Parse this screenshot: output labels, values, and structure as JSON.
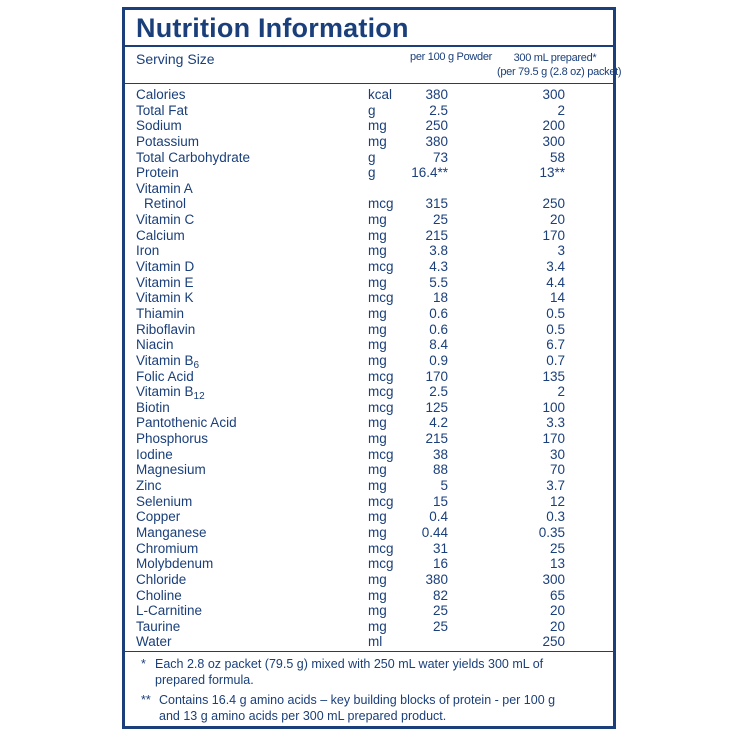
{
  "title": "Nutrition Information",
  "serving_label": "Serving Size",
  "col1_label": "per 100 g Powder",
  "col2_label_line1": "300 mL prepared*",
  "col2_label_line2": "(per 79.5 g (2.8 oz) packet)",
  "rows": [
    {
      "name": "Calories",
      "unit": "kcal",
      "v1": "380",
      "v2": "300"
    },
    {
      "name": "Total Fat",
      "unit": "g",
      "v1": "2.5",
      "v2": "2"
    },
    {
      "name": "Sodium",
      "unit": "mg",
      "v1": "250",
      "v2": "200"
    },
    {
      "name": "Potassium",
      "unit": "mg",
      "v1": "380",
      "v2": "300"
    },
    {
      "name": "Total Carbohydrate",
      "unit": "g",
      "v1": "73",
      "v2": "58"
    },
    {
      "name": "Protein",
      "unit": "g",
      "v1": "16.4**",
      "v2": "13**"
    },
    {
      "name": "Vitamin A",
      "unit": "",
      "v1": "",
      "v2": ""
    },
    {
      "name": "Retinol",
      "unit": "mcg",
      "v1": "315",
      "v2": "250"
    },
    {
      "name": "Vitamin C",
      "unit": "mg",
      "v1": "25",
      "v2": "20"
    },
    {
      "name": "Calcium",
      "unit": "mg",
      "v1": "215",
      "v2": "170"
    },
    {
      "name": "Iron",
      "unit": "mg",
      "v1": "3.8",
      "v2": "3"
    },
    {
      "name": "Vitamin D",
      "unit": "mcg",
      "v1": "4.3",
      "v2": "3.4"
    },
    {
      "name": "Vitamin E",
      "unit": "mg",
      "v1": "5.5",
      "v2": "4.4"
    },
    {
      "name": "Vitamin K",
      "unit": "mcg",
      "v1": "18",
      "v2": "14"
    },
    {
      "name": "Thiamin",
      "unit": "mg",
      "v1": "0.6",
      "v2": "0.5"
    },
    {
      "name": "Riboflavin",
      "unit": "mg",
      "v1": "0.6",
      "v2": "0.5"
    },
    {
      "name": "Niacin",
      "unit": "mg",
      "v1": "8.4",
      "v2": "6.7"
    },
    {
      "name": "Vitamin B",
      "sub": "6",
      "unit": "mg",
      "v1": "0.9",
      "v2": "0.7"
    },
    {
      "name": "Folic Acid",
      "unit": "mcg",
      "v1": "170",
      "v2": "135"
    },
    {
      "name": "Vitamin B",
      "sub": "12",
      "unit": "mcg",
      "v1": "2.5",
      "v2": "2"
    },
    {
      "name": "Biotin",
      "unit": "mcg",
      "v1": "125",
      "v2": "100"
    },
    {
      "name": "Pantothenic Acid",
      "unit": "mg",
      "v1": "4.2",
      "v2": "3.3"
    },
    {
      "name": "Phosphorus",
      "unit": "mg",
      "v1": "215",
      "v2": "170"
    },
    {
      "name": "Iodine",
      "unit": "mcg",
      "v1": "38",
      "v2": "30"
    },
    {
      "name": "Magnesium",
      "unit": "mg",
      "v1": "88",
      "v2": "70"
    },
    {
      "name": "Zinc",
      "unit": "mg",
      "v1": "5",
      "v2": "3.7"
    },
    {
      "name": "Selenium",
      "unit": "mcg",
      "v1": "15",
      "v2": "12"
    },
    {
      "name": "Copper",
      "unit": "mg",
      "v1": "0.4",
      "v2": "0.3"
    },
    {
      "name": "Manganese",
      "unit": "mg",
      "v1": "0.44",
      "v2": "0.35"
    },
    {
      "name": "Chromium",
      "unit": "mcg",
      "v1": "31",
      "v2": "25"
    },
    {
      "name": "Molybdenum",
      "unit": "mcg",
      "v1": "16",
      "v2": "13"
    },
    {
      "name": "Chloride",
      "unit": "mg",
      "v1": "380",
      "v2": "300"
    },
    {
      "name": "Choline",
      "unit": "mg",
      "v1": "82",
      "v2": "65"
    },
    {
      "name": "L-Carnitine",
      "unit": "mg",
      "v1": "25",
      "v2": "20"
    },
    {
      "name": "Taurine",
      "unit": "mg",
      "v1": "25",
      "v2": "20"
    },
    {
      "name": "Water",
      "unit": "ml",
      "v1": "",
      "v2": "250"
    }
  ],
  "footnotes": [
    {
      "marker": "*",
      "line1": "Each 2.8 oz packet (79.5 g) mixed with 250 mL water yields 300 mL of",
      "line2": "prepared formula."
    },
    {
      "marker": "**",
      "line1": "Contains 16.4 g amino acids – key building blocks of protein - per 100 g",
      "line2": "and 13 g amino acids per 300 mL prepared product."
    }
  ],
  "colors": {
    "ink": "#1a3f7a",
    "background": "#ffffff"
  }
}
